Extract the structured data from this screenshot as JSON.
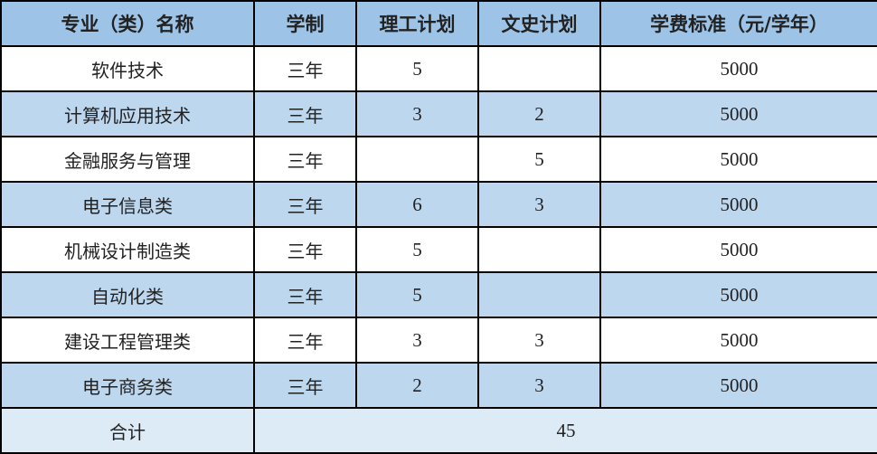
{
  "headers": [
    "专业（类）名称",
    "学制",
    "理工计划",
    "文史计划",
    "学费标准（元/学年）"
  ],
  "rows": [
    [
      "软件技术",
      "三年",
      "5",
      "",
      "5000"
    ],
    [
      "计算机应用技术",
      "三年",
      "3",
      "2",
      "5000"
    ],
    [
      "金融服务与管理",
      "三年",
      "",
      "5",
      "5000"
    ],
    [
      "电子信息类",
      "三年",
      "6",
      "3",
      "5000"
    ],
    [
      "机械设计制造类",
      "三年",
      "5",
      "",
      "5000"
    ],
    [
      "自动化类",
      "三年",
      "5",
      "",
      "5000"
    ],
    [
      "建设工程管理类",
      "三年",
      "3",
      "3",
      "5000"
    ],
    [
      "电子商务类",
      "三年",
      "2",
      "3",
      "5000"
    ]
  ],
  "total": {
    "label": "合计",
    "value": "45"
  },
  "colors": {
    "header": "#9DC3E6",
    "alt_row": "#BDD7EE",
    "total_row": "#DDEBF7"
  }
}
